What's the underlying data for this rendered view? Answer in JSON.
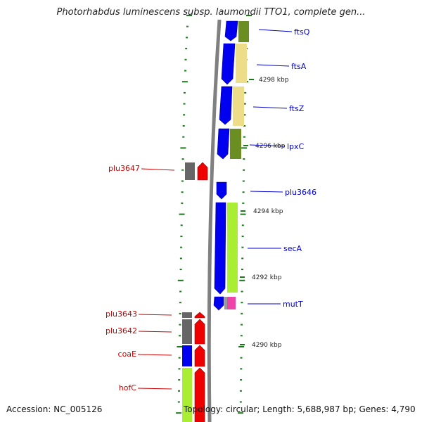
{
  "title": "Photorhabdus luminescens subsp. laumondii TTO1, complete gen...",
  "footer": {
    "accession": "Accession: NC_005126",
    "topology": "Topology: circular; Length: 5,688,987 bp; Genes: 4,790"
  },
  "colors": {
    "forward_gene_label": "#0000cc",
    "reverse_gene_label": "#cc0000",
    "backbone": "#808080",
    "tick": "#1a7a1a",
    "cds_blue": "#0000ee",
    "cds_red": "#ee0000",
    "cds_gray": "#666666",
    "cat_olive": "#6b8e23",
    "cat_khaki": "#eedd88",
    "cat_lime": "#aaee33",
    "cat_pink": "#ee44aa"
  },
  "scale_labels": [
    "4298 kbp",
    "4296 kbp",
    "4294 kbp",
    "4292 kbp",
    "4290 kbp"
  ],
  "forward_genes": [
    "ftsQ",
    "ftsA",
    "ftsZ",
    "lpxC",
    "plu3646",
    "secA",
    "mutT"
  ],
  "reverse_genes": [
    "plu3647",
    "plu3643",
    "plu3642",
    "coaE",
    "hofC"
  ]
}
